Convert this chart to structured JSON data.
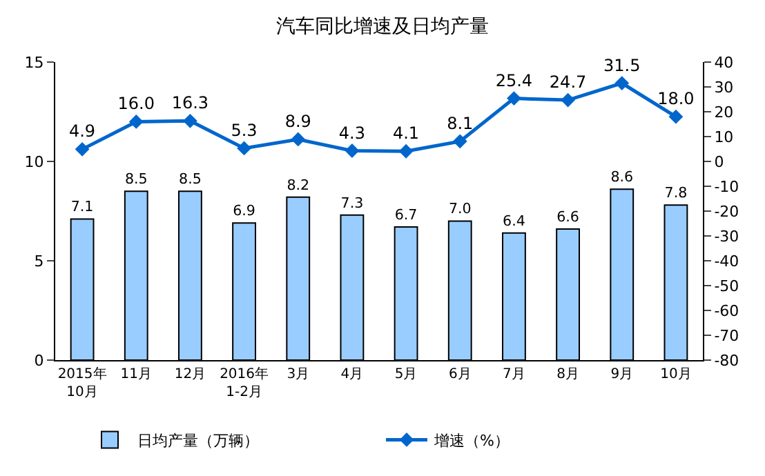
{
  "chart_data": {
    "type": "bar",
    "title": "汽车同比增速及日均产量",
    "categories": [
      "2015年\n10月",
      "11月",
      "12月",
      "2016年\n1-2月",
      "3月",
      "4月",
      "5月",
      "6月",
      "7月",
      "8月",
      "9月",
      "10月"
    ],
    "series": [
      {
        "name": "日均产量（万辆）",
        "color": "#99ccff",
        "values": [
          7.1,
          8.5,
          8.5,
          6.9,
          8.2,
          7.3,
          6.7,
          7.0,
          6.4,
          6.6,
          8.6,
          7.8
        ],
        "value_labels": [
          "7.1",
          "8.5",
          "8.5",
          "6.9",
          "8.2",
          "7.3",
          "6.7",
          "7.0",
          "6.4",
          "6.6",
          "8.6",
          "7.8"
        ]
      },
      {
        "name": "增速（%）",
        "type": "line",
        "axis": "y2",
        "color": "#0066cc",
        "marker": "diamond",
        "values": [
          4.9,
          16.0,
          16.3,
          5.3,
          8.9,
          4.3,
          4.1,
          8.1,
          25.4,
          24.7,
          31.5,
          18.0
        ],
        "value_labels": [
          "4.9",
          "16.0",
          "16.3",
          "5.3",
          "8.9",
          "4.3",
          "4.1",
          "8.1",
          "25.4",
          "24.7",
          "31.5",
          "18.0"
        ]
      }
    ],
    "ylim": [
      0,
      15
    ],
    "yticks": [
      0,
      5,
      10,
      15
    ],
    "y2lim": [
      -80,
      40
    ],
    "y2ticks": [
      -80,
      -70,
      -60,
      -50,
      -40,
      -30,
      -20,
      -10,
      0,
      10,
      20,
      30,
      40
    ],
    "legend": "bottom"
  }
}
